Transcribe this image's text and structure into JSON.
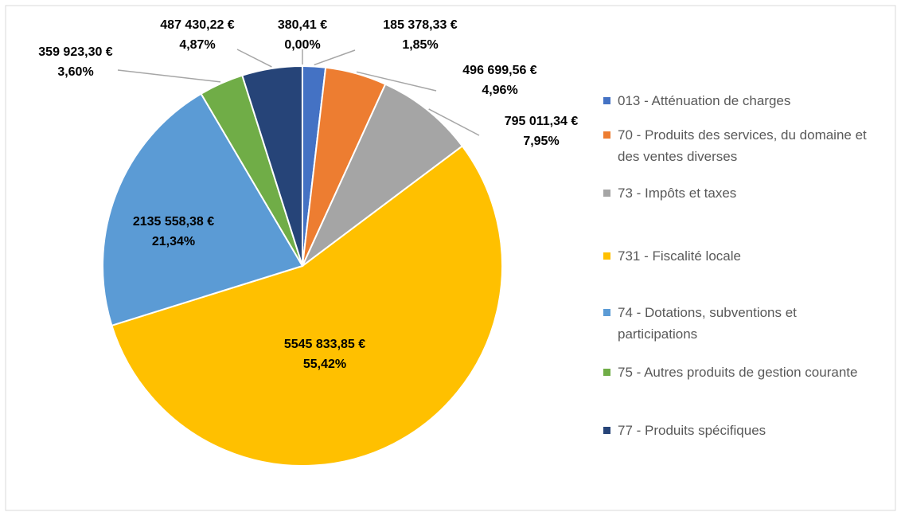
{
  "chart_data": {
    "type": "pie",
    "categories": [
      "013 - Atténuation de charges",
      "70 - Produits des services, du domaine et des ventes diverses",
      "73 - Impôts et taxes",
      "731 - Fiscalité locale",
      "74 - Dotations, subventions et participations",
      "75 - Autres produits de gestion courante",
      "77 - Produits spécifiques",
      null
    ],
    "values": [
      185378.33,
      496699.56,
      795011.34,
      5545833.85,
      2135558.38,
      359923.3,
      487430.22,
      380.41
    ],
    "value_labels": [
      "185 378,33 €",
      "496 699,56 €",
      "795 011,34 €",
      "5545 833,85 €",
      "2135 558,38 €",
      "359 923,30 €",
      "487 430,22 €",
      "380,41 €"
    ],
    "percentages": [
      1.85,
      4.96,
      7.95,
      55.42,
      21.34,
      3.6,
      4.87,
      0.0
    ],
    "percentage_labels": [
      "1,85%",
      "4,96%",
      "7,95%",
      "55,42%",
      "21,34%",
      "3,60%",
      "4,87%",
      "0,00%"
    ],
    "colors": [
      "#4472c4",
      "#ed7d31",
      "#a5a5a5",
      "#ffc000",
      "#5b9bd5",
      "#70ad47",
      "#264478",
      "#9e480e"
    ],
    "legend": "right"
  }
}
